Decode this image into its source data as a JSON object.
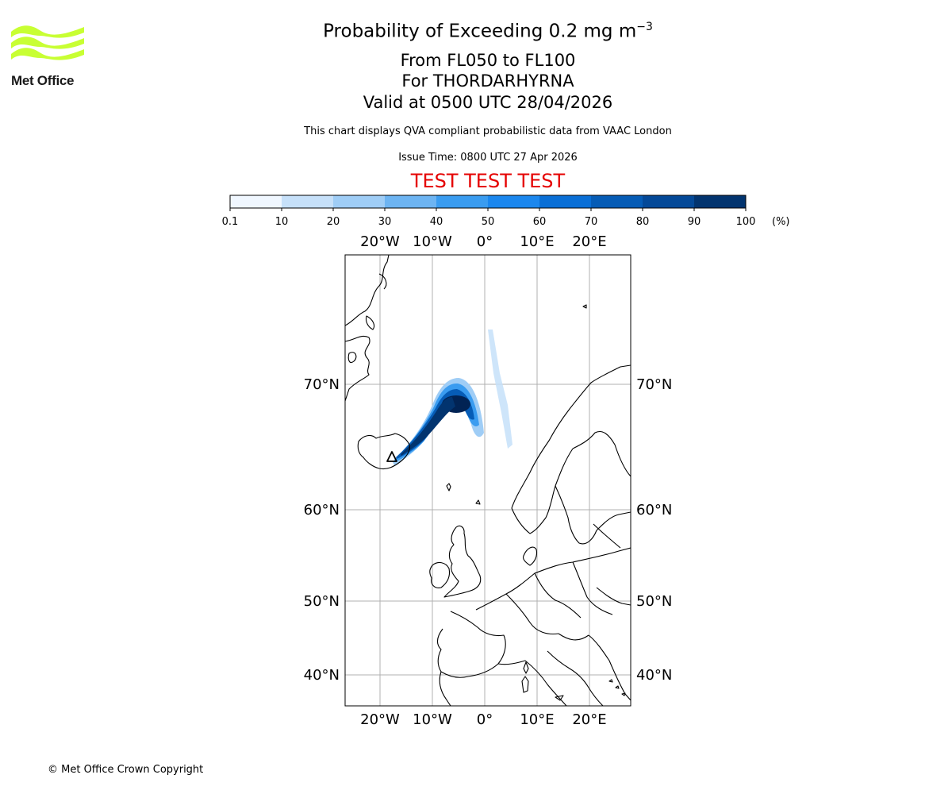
{
  "logo": {
    "name": "Met Office"
  },
  "header": {
    "title_main": "Probability of Exceeding 0.2 mg m",
    "title_exp": "−3",
    "level_range": "From FL050 to FL100",
    "volcano": "For THORDARHYRNA",
    "valid_time": "Valid at 0500 UTC 28/04/2026",
    "description": "This chart displays QVA compliant probabilistic data from VAAC London",
    "issue_time": "Issue Time: 0800 UTC 27 Apr 2026",
    "test_banner": "TEST TEST TEST"
  },
  "colorbar": {
    "ticks": [
      "0.1",
      "10",
      "20",
      "30",
      "40",
      "50",
      "60",
      "70",
      "80",
      "90",
      "100"
    ],
    "unit": "(%)",
    "colors": [
      "#f0f7ff",
      "#c6e0f9",
      "#9fcdf6",
      "#6db4f2",
      "#3a9cf0",
      "#1b87ee",
      "#0a6fd6",
      "#065cb6",
      "#044998",
      "#02346f",
      "#012354"
    ]
  },
  "map": {
    "lon_labels": [
      "20°W",
      "10°W",
      "0°",
      "10°E",
      "20°E"
    ],
    "lat_labels": [
      "70°N",
      "60°N",
      "50°N",
      "40°N"
    ],
    "volcano_marker": "triangle"
  },
  "footer": {
    "copyright": "© Met Office Crown Copyright"
  }
}
